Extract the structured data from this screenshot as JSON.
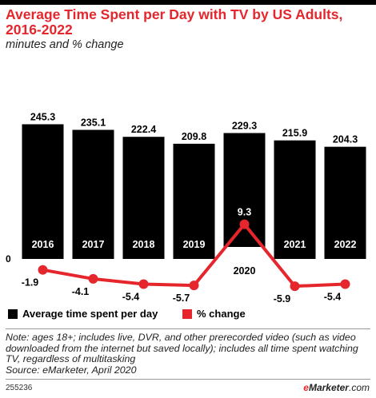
{
  "title": "Average Time Spent per Day with TV by US Adults, 2016-2022",
  "subtitle": "minutes and % change",
  "chart_data": {
    "type": "bar",
    "categories": [
      "2016",
      "2017",
      "2018",
      "2019",
      "2020",
      "2021",
      "2022"
    ],
    "series": [
      {
        "name": "Average time spent per day",
        "type": "bar",
        "values": [
          245.3,
          235.1,
          222.4,
          209.8,
          229.3,
          215.9,
          204.3
        ],
        "labels": [
          "245.3",
          "235.1",
          "222.4",
          "209.8",
          "229.3",
          "215.9",
          "204.3"
        ]
      },
      {
        "name": "% change",
        "type": "line",
        "values": [
          -1.9,
          -4.1,
          -5.4,
          -5.7,
          9.3,
          -5.9,
          -5.4
        ],
        "labels": [
          "-1.9",
          "-4.1",
          "-5.4",
          "-5.7",
          "9.3",
          "-5.9",
          "-5.4"
        ]
      }
    ],
    "zero_label": "0",
    "colors": {
      "bar": "#000000",
      "line": "#e5262c"
    },
    "legend_position": "bottom-left",
    "grid": false
  },
  "legend": {
    "bar_label": "Average time spent per day",
    "line_label": "% change"
  },
  "note": "Note: ages 18+; includes live, DVR, and other prerecorded video (such as video downloaded from the internet but saved locally); includes all time spent watching TV, regardless of multitasking",
  "source": "Source: eMarketer, April 2020",
  "footer_id": "255236",
  "brand": {
    "e": "e",
    "name": "Marketer",
    "suffix": ".com"
  }
}
